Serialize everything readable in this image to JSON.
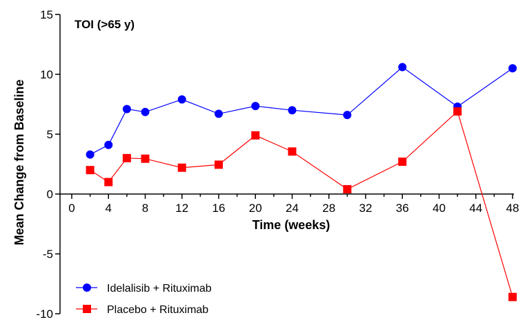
{
  "chart_data": {
    "type": "line",
    "annotation": "TOI (>65 y)",
    "xlabel": "Time (weeks)",
    "ylabel": "Mean Change from  Baseline",
    "xlim": [
      -2,
      48
    ],
    "ylim": [
      -10,
      15
    ],
    "xticks": [
      0,
      4,
      8,
      12,
      16,
      20,
      24,
      28,
      32,
      36,
      40,
      44,
      48
    ],
    "yticks": [
      -10,
      -5,
      0,
      5,
      10,
      15
    ],
    "grid": false,
    "legend_position": "bottom-left",
    "x": [
      2,
      4,
      6,
      8,
      12,
      16,
      20,
      24,
      30,
      36,
      42,
      48
    ],
    "series": [
      {
        "name": "Idelalisib  + Rituximab",
        "color": "#0000ff",
        "marker": "circle",
        "values": [
          3.3,
          4.1,
          7.1,
          6.85,
          7.9,
          6.7,
          7.35,
          7.0,
          6.6,
          10.6,
          7.3,
          10.5
        ]
      },
      {
        "name": "Placebo + Rituximab",
        "color": "#ff0000",
        "marker": "square",
        "values": [
          2.0,
          1.0,
          3.0,
          2.95,
          2.2,
          2.45,
          4.9,
          3.55,
          0.4,
          2.7,
          6.9,
          -8.6
        ]
      }
    ]
  }
}
